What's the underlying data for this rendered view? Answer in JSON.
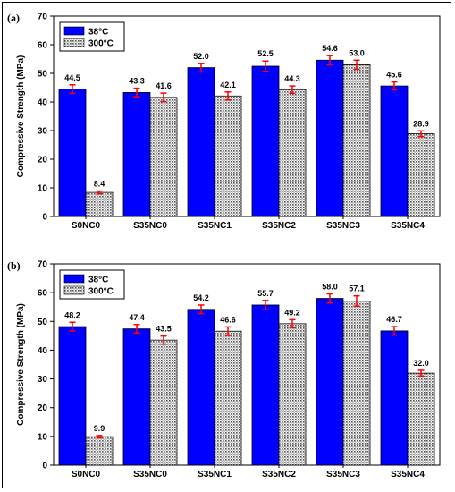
{
  "chart_data": [
    {
      "panel_label": "(a)",
      "type": "bar",
      "categories": [
        "S0NC0",
        "S35NC0",
        "S35NC1",
        "S35NC2",
        "S35NC3",
        "S35NC4"
      ],
      "series": [
        {
          "name": "38°C",
          "values": [
            44.5,
            43.3,
            52.0,
            52.5,
            54.6,
            45.6
          ],
          "labels": [
            "44.5",
            "43.3",
            "52.0",
            "52.5",
            "54.6",
            "45.6"
          ],
          "errors": [
            1.5,
            1.5,
            1.5,
            1.8,
            1.6,
            1.4
          ],
          "color": "#0000ff"
        },
        {
          "name": "300°C",
          "values": [
            8.4,
            41.6,
            42.1,
            44.3,
            53.0,
            28.9
          ],
          "labels": [
            "8.4",
            "41.6",
            "42.1",
            "44.3",
            "53.0",
            "28.9"
          ],
          "errors": [
            0.5,
            1.5,
            1.4,
            1.3,
            1.6,
            1.0
          ],
          "color": "#c8c8c8"
        }
      ],
      "xlabel": "",
      "ylabel": "Compressive Strength (MPa)",
      "ylim": [
        0,
        70
      ],
      "yticks": [
        "0",
        "10",
        "20",
        "30",
        "40",
        "50",
        "60",
        "70"
      ],
      "grid": false,
      "legend": "top-left",
      "error_color": "#ff0000"
    },
    {
      "panel_label": "(b)",
      "type": "bar",
      "categories": [
        "S0NC0",
        "S35NC0",
        "S35NC1",
        "S35NC2",
        "S35NC3",
        "S35NC4"
      ],
      "series": [
        {
          "name": "38°C",
          "values": [
            48.2,
            47.4,
            54.2,
            55.7,
            58.0,
            46.7
          ],
          "labels": [
            "48.2",
            "47.4",
            "54.2",
            "55.7",
            "58.0",
            "46.7"
          ],
          "errors": [
            1.5,
            1.5,
            1.5,
            1.6,
            1.6,
            1.5
          ],
          "color": "#0000ff"
        },
        {
          "name": "300°C",
          "values": [
            9.9,
            43.5,
            46.6,
            49.2,
            57.1,
            32.0
          ],
          "labels": [
            "9.9",
            "43.5",
            "46.6",
            "49.2",
            "57.1",
            "32.0"
          ],
          "errors": [
            0.4,
            1.4,
            1.5,
            1.4,
            1.8,
            1.0
          ],
          "color": "#c8c8c8"
        }
      ],
      "xlabel": "",
      "ylabel": "Compressive Strength (MPa)",
      "ylim": [
        0,
        70
      ],
      "yticks": [
        "0",
        "10",
        "20",
        "30",
        "40",
        "50",
        "60",
        "70"
      ],
      "grid": false,
      "legend": "top-left",
      "error_color": "#ff0000"
    }
  ]
}
